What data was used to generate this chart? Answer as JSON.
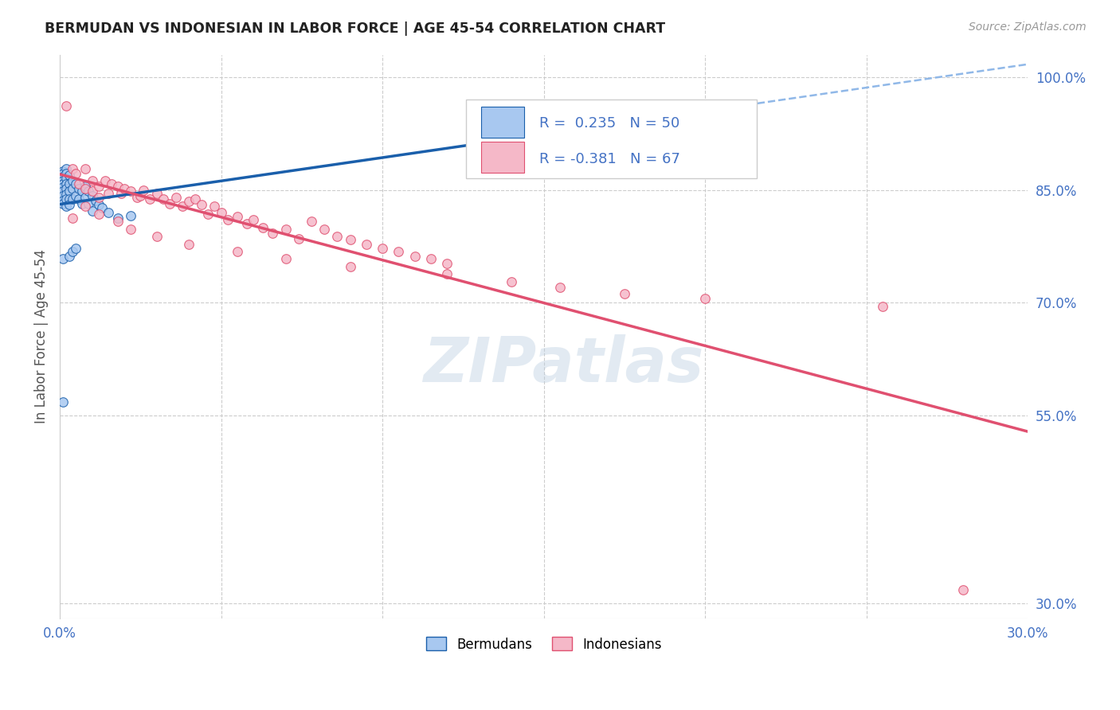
{
  "title": "BERMUDAN VS INDONESIAN IN LABOR FORCE | AGE 45-54 CORRELATION CHART",
  "source": "Source: ZipAtlas.com",
  "ylabel": "In Labor Force | Age 45-54",
  "xlim": [
    0.0,
    0.3
  ],
  "ylim": [
    0.28,
    1.03
  ],
  "yticks_right": [
    0.3,
    0.55,
    0.7,
    0.85,
    1.0
  ],
  "yticklabels_right": [
    "30.0%",
    "55.0%",
    "70.0%",
    "85.0%",
    "100.0%"
  ],
  "r_bermudan": 0.235,
  "n_bermudan": 50,
  "r_indonesian": -0.381,
  "n_indonesian": 67,
  "legend_labels": [
    "Bermudans",
    "Indonesians"
  ],
  "color_bermudan": "#A8C8F0",
  "color_indonesian": "#F5B8C8",
  "line_color_bermudan": "#1A5FAB",
  "line_color_indonesian": "#E05070",
  "dashed_color": "#90B8E8",
  "title_color": "#222222",
  "axis_color": "#4472C4",
  "watermark": "ZIPatlas",
  "bermudan_x": [
    0.001,
    0.001,
    0.001,
    0.001,
    0.001,
    0.001,
    0.001,
    0.001,
    0.001,
    0.001,
    0.002,
    0.002,
    0.002,
    0.002,
    0.002,
    0.002,
    0.002,
    0.002,
    0.003,
    0.003,
    0.003,
    0.003,
    0.003,
    0.004,
    0.004,
    0.004,
    0.005,
    0.005,
    0.006,
    0.006,
    0.007,
    0.007,
    0.008,
    0.008,
    0.009,
    0.009,
    0.01,
    0.01,
    0.011,
    0.012,
    0.013,
    0.015,
    0.018,
    0.022,
    0.001,
    0.001,
    0.003,
    0.004,
    0.005,
    0.145
  ],
  "bermudan_y": [
    0.875,
    0.872,
    0.868,
    0.862,
    0.858,
    0.854,
    0.848,
    0.842,
    0.836,
    0.832,
    0.878,
    0.872,
    0.865,
    0.858,
    0.852,
    0.844,
    0.838,
    0.828,
    0.87,
    0.858,
    0.848,
    0.838,
    0.83,
    0.862,
    0.852,
    0.838,
    0.858,
    0.842,
    0.852,
    0.838,
    0.848,
    0.832,
    0.855,
    0.84,
    0.848,
    0.832,
    0.842,
    0.822,
    0.836,
    0.83,
    0.826,
    0.82,
    0.812,
    0.816,
    0.758,
    0.568,
    0.762,
    0.768,
    0.772,
    0.93
  ],
  "indonesian_x": [
    0.002,
    0.004,
    0.005,
    0.006,
    0.008,
    0.008,
    0.01,
    0.01,
    0.012,
    0.012,
    0.014,
    0.015,
    0.016,
    0.018,
    0.019,
    0.02,
    0.022,
    0.024,
    0.025,
    0.026,
    0.028,
    0.03,
    0.032,
    0.034,
    0.036,
    0.038,
    0.04,
    0.042,
    0.044,
    0.046,
    0.048,
    0.05,
    0.052,
    0.055,
    0.058,
    0.06,
    0.063,
    0.066,
    0.07,
    0.074,
    0.078,
    0.082,
    0.086,
    0.09,
    0.095,
    0.1,
    0.105,
    0.11,
    0.115,
    0.12,
    0.004,
    0.008,
    0.012,
    0.018,
    0.022,
    0.03,
    0.04,
    0.055,
    0.07,
    0.09,
    0.12,
    0.14,
    0.155,
    0.175,
    0.2,
    0.255,
    0.28
  ],
  "indonesian_y": [
    0.962,
    0.878,
    0.872,
    0.858,
    0.878,
    0.852,
    0.862,
    0.848,
    0.855,
    0.84,
    0.862,
    0.845,
    0.858,
    0.855,
    0.845,
    0.852,
    0.848,
    0.84,
    0.842,
    0.85,
    0.838,
    0.845,
    0.838,
    0.832,
    0.84,
    0.828,
    0.835,
    0.838,
    0.83,
    0.818,
    0.828,
    0.82,
    0.81,
    0.815,
    0.805,
    0.81,
    0.8,
    0.792,
    0.798,
    0.785,
    0.808,
    0.798,
    0.788,
    0.784,
    0.778,
    0.772,
    0.768,
    0.762,
    0.758,
    0.752,
    0.812,
    0.828,
    0.818,
    0.808,
    0.798,
    0.788,
    0.778,
    0.768,
    0.758,
    0.748,
    0.738,
    0.728,
    0.72,
    0.712,
    0.705,
    0.695,
    0.318
  ]
}
